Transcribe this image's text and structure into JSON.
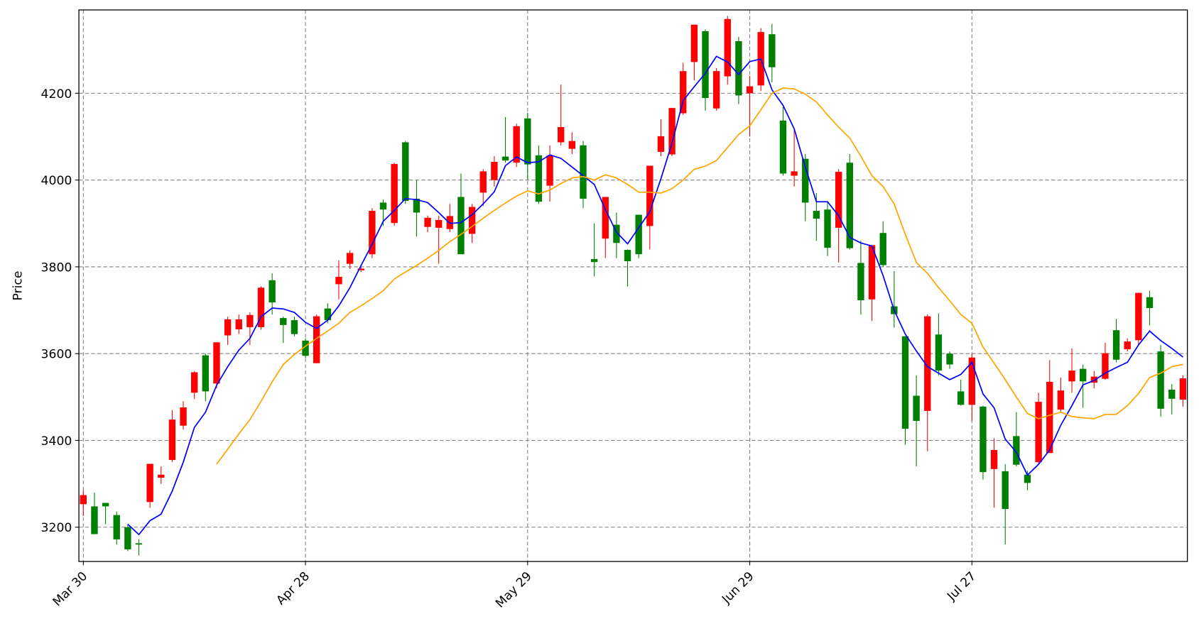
{
  "chart_data": {
    "type": "candlestick",
    "ylabel": "Price",
    "ylim": [
      3121,
      4392
    ],
    "yticks": [
      3200,
      3400,
      3600,
      3800,
      4000,
      4200
    ],
    "xlim": [
      -0.4,
      99.4
    ],
    "xticks": [
      {
        "value": 0,
        "label": "Mar 30"
      },
      {
        "value": 20,
        "label": "Apr 28"
      },
      {
        "value": 40,
        "label": "May 29"
      },
      {
        "value": 60,
        "label": "Jun 29"
      },
      {
        "value": 80,
        "label": "Jul 27"
      }
    ],
    "grid": true,
    "up_color": "#ff0000",
    "down_color": "#008000",
    "open": [
      3253,
      3248,
      3256,
      3228,
      3200,
      3163,
      3258,
      3314,
      3355,
      3434,
      3510,
      3596,
      3531,
      3642,
      3656,
      3661,
      3661,
      3769,
      3682,
      3677,
      3630,
      3578,
      3704,
      3760,
      3807,
      3792,
      3829,
      3948,
      3901,
      4087,
      3957,
      3892,
      3890,
      3887,
      3961,
      3876,
      3971,
      4000,
      4054,
      4040,
      4142,
      4057,
      3987,
      4087,
      4072,
      4080,
      3818,
      3865,
      3897,
      3839,
      3920,
      3894,
      4065,
      4059,
      4154,
      4272,
      4343,
      4165,
      4239,
      4320,
      4200,
      4218,
      4336,
      4137,
      4010,
      4049,
      3929,
      3932,
      3890,
      4040,
      3809,
      3725,
      3878,
      3709,
      3640,
      3503,
      3468,
      3644,
      3600,
      3513,
      3482,
      3478,
      3334,
      3329,
      3410,
      3321,
      3350,
      3371,
      3471,
      3536,
      3565,
      3533,
      3542,
      3654,
      3610,
      3631,
      3730,
      3605,
      3517,
      3494
    ],
    "high": [
      3285,
      3280,
      3256,
      3236,
      3206,
      3172,
      3346,
      3340,
      3470,
      3490,
      3560,
      3600,
      3626,
      3685,
      3690,
      3695,
      3755,
      3785,
      3685,
      3685,
      3635,
      3690,
      3716,
      3815,
      3838,
      3800,
      3935,
      3955,
      4040,
      4090,
      4000,
      3918,
      3918,
      3945,
      4015,
      3945,
      4025,
      4055,
      4145,
      4130,
      4155,
      4080,
      4080,
      4220,
      4110,
      4090,
      3900,
      3961,
      3925,
      3840,
      3920,
      4033,
      4140,
      4166,
      4270,
      4358,
      4347,
      4258,
      4378,
      4330,
      4240,
      4350,
      4360,
      4168,
      4115,
      4060,
      3970,
      3950,
      4025,
      4060,
      3860,
      3850,
      3905,
      3790,
      3640,
      3550,
      3690,
      3693,
      3605,
      3540,
      3600,
      3480,
      3405,
      3345,
      3465,
      3330,
      3510,
      3585,
      3545,
      3612,
      3575,
      3560,
      3625,
      3680,
      3635,
      3740,
      3745,
      3620,
      3530,
      3550
    ],
    "low": [
      3226,
      3184,
      3207,
      3160,
      3145,
      3135,
      3245,
      3300,
      3350,
      3425,
      3495,
      3490,
      3520,
      3620,
      3645,
      3620,
      3655,
      3690,
      3625,
      3640,
      3590,
      3578,
      3670,
      3725,
      3795,
      3788,
      3820,
      3895,
      3895,
      3945,
      3870,
      3880,
      3807,
      3880,
      3829,
      3855,
      3940,
      3985,
      4040,
      4030,
      4000,
      3945,
      3950,
      4080,
      4060,
      3935,
      3778,
      3820,
      3820,
      3755,
      3820,
      3840,
      4055,
      4055,
      4150,
      4230,
      4160,
      4160,
      4220,
      4175,
      4100,
      4205,
      4225,
      4010,
      3985,
      3905,
      3860,
      3825,
      3810,
      3840,
      3690,
      3675,
      3800,
      3660,
      3390,
      3340,
      3375,
      3550,
      3565,
      3480,
      3445,
      3310,
      3245,
      3160,
      3340,
      3285,
      3345,
      3371,
      3465,
      3510,
      3475,
      3520,
      3540,
      3580,
      3605,
      3620,
      3665,
      3455,
      3460,
      3478
    ],
    "close": [
      3274,
      3184,
      3248,
      3172,
      3149,
      3160,
      3346,
      3321,
      3448,
      3476,
      3557,
      3513,
      3626,
      3679,
      3679,
      3689,
      3752,
      3718,
      3666,
      3645,
      3595,
      3686,
      3677,
      3777,
      3832,
      3796,
      3929,
      3932,
      4037,
      3952,
      3925,
      3913,
      3908,
      3917,
      3829,
      3938,
      4020,
      4042,
      4045,
      4124,
      4036,
      3950,
      4056,
      4122,
      4090,
      3957,
      3811,
      3961,
      3855,
      3813,
      3829,
      4033,
      4101,
      4166,
      4251,
      4358,
      4189,
      4251,
      4371,
      4195,
      4216,
      4341,
      4260,
      4015,
      4020,
      3948,
      3911,
      3844,
      4019,
      3843,
      3723,
      3850,
      3804,
      3691,
      3427,
      3445,
      3686,
      3561,
      3575,
      3482,
      3591,
      3327,
      3378,
      3242,
      3344,
      3302,
      3489,
      3535,
      3515,
      3561,
      3536,
      3547,
      3601,
      3586,
      3628,
      3740,
      3705,
      3473,
      3496,
      3543
    ],
    "lines": [
      {
        "color": "#0000ff",
        "values": [
          null,
          null,
          null,
          null,
          3207,
          3183,
          3215,
          3230,
          3283,
          3350,
          3430,
          3465,
          3527,
          3570,
          3608,
          3635,
          3685,
          3705,
          3703,
          3695,
          3672,
          3658,
          3677,
          3710,
          3752,
          3803,
          3852,
          3905,
          3930,
          3957,
          3955,
          3948,
          3925,
          3900,
          3902,
          3920,
          3945,
          3973,
          4033,
          4053,
          4040,
          4042,
          4058,
          4050,
          4030,
          4010,
          3990,
          3932,
          3880,
          3853,
          3890,
          3927,
          4003,
          4085,
          4183,
          4215,
          4246,
          4285,
          4272,
          4243,
          4273,
          4279,
          4208,
          4172,
          4118,
          4030,
          3950,
          3950,
          3918,
          3868,
          3855,
          3848,
          3780,
          3700,
          3645,
          3606,
          3570,
          3555,
          3540,
          3552,
          3580,
          3507,
          3475,
          3403,
          3373,
          3320,
          3345,
          3378,
          3435,
          3480,
          3528,
          3538,
          3555,
          3568,
          3580,
          3620,
          3652,
          3630,
          3612,
          3592
        ]
      },
      {
        "color": "#ffa500",
        "values": [
          null,
          null,
          null,
          null,
          null,
          null,
          null,
          null,
          null,
          null,
          null,
          null,
          3345,
          3380,
          3415,
          3448,
          3490,
          3535,
          3575,
          3598,
          3617,
          3635,
          3652,
          3670,
          3695,
          3710,
          3727,
          3745,
          3772,
          3788,
          3803,
          3820,
          3838,
          3858,
          3875,
          3893,
          3912,
          3930,
          3947,
          3963,
          3975,
          3968,
          3977,
          3992,
          4005,
          4008,
          4000,
          4012,
          4005,
          3990,
          3972,
          3972,
          3970,
          3980,
          4000,
          4025,
          4032,
          4045,
          4075,
          4105,
          4125,
          4162,
          4200,
          4212,
          4210,
          4198,
          4180,
          4150,
          4122,
          4097,
          4055,
          4010,
          3985,
          3945,
          3875,
          3810,
          3785,
          3752,
          3722,
          3690,
          3670,
          3615,
          3578,
          3540,
          3500,
          3462,
          3450,
          3458,
          3465,
          3455,
          3452,
          3450,
          3460,
          3460,
          3480,
          3508,
          3545,
          3555,
          3570,
          3575
        ]
      }
    ]
  }
}
